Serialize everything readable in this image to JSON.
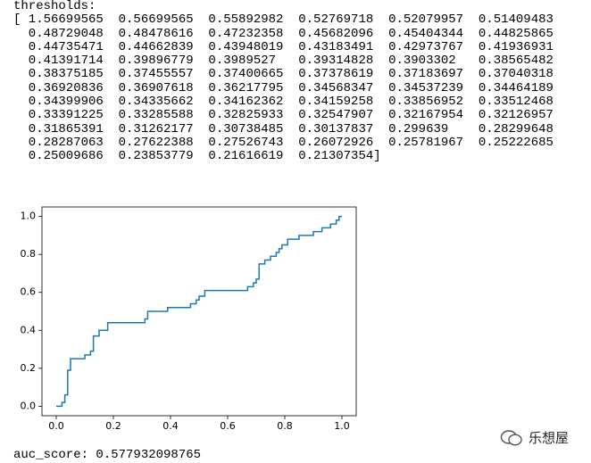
{
  "output": {
    "lines": [
      "thresholds:",
      "[ 1.56699565  0.56699565  0.55892982  0.52769718  0.52079957  0.51409483",
      "  0.48729048  0.48478616  0.47232358  0.45682096  0.45404344  0.44825865",
      "  0.44735471  0.44662839  0.43948019  0.43183491  0.42973767  0.41936931",
      "  0.41391714  0.39896779  0.3989527   0.39314828  0.3903302   0.38565482",
      "  0.38375185  0.37455557  0.37400665  0.37378619  0.37183697  0.37040318",
      "  0.36920836  0.36907618  0.36217795  0.34568347  0.34537239  0.34464189",
      "  0.34399906  0.34335662  0.34162362  0.34159258  0.33856952  0.33512468",
      "  0.33391225  0.33285588  0.32825933  0.32547907  0.32167954  0.32126957",
      "  0.31865391  0.31262177  0.30738485  0.30137837  0.299639    0.28299648",
      "  0.28287063  0.27622388  0.27526743  0.26072926  0.25781967  0.25222685",
      "  0.25009686  0.23853779  0.21616619  0.21307354]"
    ]
  },
  "chart_data": {
    "type": "line",
    "x": [
      0,
      0.02,
      0.02,
      0.03,
      0.03,
      0.04,
      0.04,
      0.05,
      0.05,
      0.1,
      0.1,
      0.12,
      0.12,
      0.13,
      0.13,
      0.15,
      0.15,
      0.18,
      0.18,
      0.31,
      0.31,
      0.32,
      0.32,
      0.39,
      0.39,
      0.47,
      0.47,
      0.49,
      0.49,
      0.5,
      0.5,
      0.52,
      0.52,
      0.67,
      0.67,
      0.69,
      0.69,
      0.7,
      0.7,
      0.71,
      0.71,
      0.73,
      0.73,
      0.75,
      0.75,
      0.77,
      0.77,
      0.78,
      0.78,
      0.79,
      0.79,
      0.81,
      0.81,
      0.85,
      0.85,
      0.9,
      0.9,
      0.93,
      0.93,
      0.96,
      0.96,
      0.98,
      0.98,
      0.99,
      0.99,
      1.0
    ],
    "series": [
      {
        "color": "#1f77b4",
        "values": [
          0,
          0,
          0.02,
          0.02,
          0.06,
          0.06,
          0.19,
          0.19,
          0.25,
          0.25,
          0.27,
          0.27,
          0.29,
          0.29,
          0.37,
          0.37,
          0.4,
          0.4,
          0.44,
          0.44,
          0.46,
          0.46,
          0.5,
          0.5,
          0.52,
          0.52,
          0.54,
          0.54,
          0.56,
          0.56,
          0.58,
          0.58,
          0.61,
          0.61,
          0.63,
          0.63,
          0.65,
          0.65,
          0.67,
          0.67,
          0.75,
          0.75,
          0.77,
          0.77,
          0.79,
          0.79,
          0.81,
          0.81,
          0.83,
          0.83,
          0.85,
          0.85,
          0.88,
          0.88,
          0.9,
          0.9,
          0.92,
          0.92,
          0.94,
          0.94,
          0.96,
          0.96,
          0.98,
          0.98,
          1.0,
          1.0
        ]
      }
    ],
    "xlim": [
      -0.05,
      1.05
    ],
    "ylim": [
      -0.05,
      1.05
    ],
    "xticks": [
      {
        "value": 0,
        "label": "0.0"
      },
      0.2,
      0.4,
      0.6,
      0.8,
      {
        "value": 1,
        "label": "1.0"
      }
    ],
    "yticks": [
      {
        "value": 0,
        "label": "0.0"
      },
      0.2,
      0.4,
      0.6,
      0.8,
      {
        "value": 1,
        "label": "1.0"
      }
    ],
    "grid": false
  },
  "result_text": "auc_score: 0.577932098765",
  "watermark": "乐想屋"
}
